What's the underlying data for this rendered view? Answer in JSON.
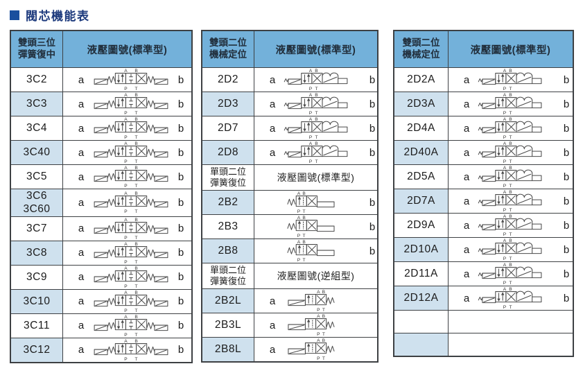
{
  "page": {
    "title": "閥芯機能表"
  },
  "colors": {
    "header_blue": "#73b1da",
    "alt_row_blue": "#cfe1ee",
    "border": "#3d4043",
    "title_navy": "#1d3a7d",
    "bullet_blue": "#1a4f9e",
    "symbol_stroke": "#4b4b4b"
  },
  "symbols": {
    "ports_top": [
      "A",
      "B"
    ],
    "ports_bottom": [
      "P",
      "T"
    ]
  },
  "tables": [
    {
      "sections": [
        {
          "header": {
            "col1": "雙頭三位\n彈簧復中",
            "col2": "液壓圖號(標準型)"
          },
          "rows": [
            {
              "code": "3C2",
              "a": "a",
              "b": "b",
              "symbol": "3C"
            },
            {
              "code": "3C3",
              "a": "a",
              "b": "b",
              "symbol": "3C"
            },
            {
              "code": "3C4",
              "a": "a",
              "b": "b",
              "symbol": "3C"
            },
            {
              "code": "3C40",
              "a": "a",
              "b": "b",
              "symbol": "3C"
            },
            {
              "code": "3C5",
              "a": "a",
              "b": "b",
              "symbol": "3C"
            },
            {
              "code": "3C6\n3C60",
              "a": "a",
              "b": "b",
              "symbol": "3C"
            },
            {
              "code": "3C7",
              "a": "a",
              "b": "b",
              "symbol": "3C"
            },
            {
              "code": "3C8",
              "a": "a",
              "b": "b",
              "symbol": "3C"
            },
            {
              "code": "3C9",
              "a": "a",
              "b": "b",
              "symbol": "3C"
            },
            {
              "code": "3C10",
              "a": "a",
              "b": "b",
              "symbol": "3C"
            },
            {
              "code": "3C11",
              "a": "a",
              "b": "b",
              "symbol": "3C"
            },
            {
              "code": "3C12",
              "a": "a",
              "b": "b",
              "symbol": "3C"
            }
          ]
        }
      ]
    },
    {
      "sections": [
        {
          "header": {
            "col1": "雙頭二位\n機械定位",
            "col2": "液壓圖號(標準型)"
          },
          "rows": [
            {
              "code": "2D2",
              "a": "a",
              "b": "b",
              "symbol": "2D"
            },
            {
              "code": "2D3",
              "a": "a",
              "b": "b",
              "symbol": "2D"
            },
            {
              "code": "2D7",
              "a": "a",
              "b": "b",
              "symbol": "2D"
            },
            {
              "code": "2D8",
              "a": "a",
              "b": "b",
              "symbol": "2D"
            }
          ]
        },
        {
          "header": {
            "col1": "單頭二位\n彈簧復位",
            "col2": "液壓圖號(標準型)"
          },
          "rows": [
            {
              "code": "2B2",
              "a": "",
              "b": "b",
              "symbol": "2B"
            },
            {
              "code": "2B3",
              "a": "",
              "b": "b",
              "symbol": "2B"
            },
            {
              "code": "2B8",
              "a": "",
              "b": "b",
              "symbol": "2B"
            }
          ]
        },
        {
          "header": {
            "col1": "單頭二位\n彈簧復位",
            "col2": "液壓圖號(逆組型)"
          },
          "rows": [
            {
              "code": "2B2L",
              "a": "a",
              "b": "",
              "symbol": "2BL"
            },
            {
              "code": "2B3L",
              "a": "a",
              "b": "",
              "symbol": "2BL"
            },
            {
              "code": "2B8L",
              "a": "a",
              "b": "",
              "symbol": "2BL"
            }
          ]
        }
      ]
    },
    {
      "sections": [
        {
          "header": {
            "col1": "雙頭二位\n機械定位",
            "col2": "液壓圖號(標準型)"
          },
          "rows": [
            {
              "code": "2D2A",
              "a": "a",
              "b": "b",
              "symbol": "2DA"
            },
            {
              "code": "2D3A",
              "a": "a",
              "b": "b",
              "symbol": "2DA"
            },
            {
              "code": "2D4A",
              "a": "a",
              "b": "b",
              "symbol": "2DA"
            },
            {
              "code": "2D40A",
              "a": "a",
              "b": "b",
              "symbol": "2DA"
            },
            {
              "code": "2D5A",
              "a": "a",
              "b": "b",
              "symbol": "2DA"
            },
            {
              "code": "2D7A",
              "a": "a",
              "b": "b",
              "symbol": "2DA"
            },
            {
              "code": "2D9A",
              "a": "a",
              "b": "b",
              "symbol": "2DA"
            },
            {
              "code": "2D10A",
              "a": "a",
              "b": "b",
              "symbol": "2DA"
            },
            {
              "code": "2D11A",
              "a": "a",
              "b": "b",
              "symbol": "2DA"
            },
            {
              "code": "2D12A",
              "a": "a",
              "b": "b",
              "symbol": "2DA"
            },
            {
              "code": "",
              "a": "",
              "b": "",
              "symbol": ""
            },
            {
              "code": "",
              "a": "",
              "b": "",
              "symbol": ""
            }
          ]
        }
      ]
    }
  ]
}
